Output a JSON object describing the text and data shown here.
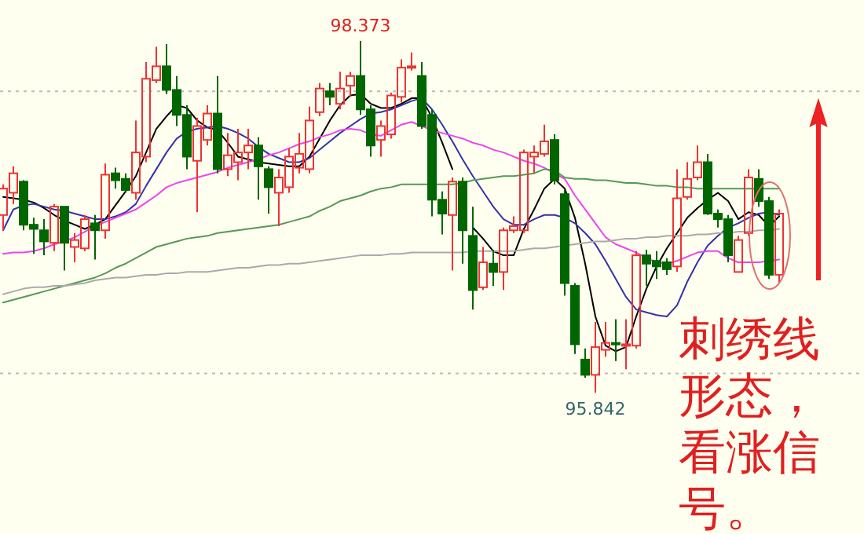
{
  "chart_data": {
    "type": "candlestick",
    "categories": [
      null,
      null,
      null,
      null,
      null,
      null,
      null,
      null,
      null,
      null,
      null,
      null,
      null,
      null,
      null,
      null,
      null,
      null,
      null,
      null,
      null,
      null,
      null,
      null,
      null,
      null,
      null,
      null,
      null,
      null,
      null,
      null,
      null,
      null,
      null,
      null,
      null,
      null,
      null,
      null,
      null,
      null,
      null,
      null,
      null,
      null,
      null,
      null,
      null,
      null,
      null,
      null,
      null,
      null,
      null,
      null,
      null,
      null,
      null,
      null,
      null,
      null,
      null,
      null,
      null,
      null,
      null,
      null,
      null,
      null,
      null,
      null,
      null,
      null,
      null,
      null,
      null
    ],
    "ohlc": [
      [
        97.12,
        97.34,
        97.01,
        97.31
      ],
      [
        97.28,
        97.47,
        97.2,
        97.42
      ],
      [
        97.36,
        97.37,
        97.01,
        97.05
      ],
      [
        97.05,
        97.1,
        96.84,
        97.02
      ],
      [
        97.01,
        97.09,
        96.83,
        96.93
      ],
      [
        96.92,
        97.2,
        96.86,
        97.18
      ],
      [
        97.18,
        97.18,
        96.72,
        96.92
      ],
      [
        96.89,
        96.99,
        96.78,
        96.94
      ],
      [
        96.88,
        97.12,
        96.86,
        97.09
      ],
      [
        97.06,
        97.12,
        96.8,
        97.01
      ],
      [
        97.01,
        97.49,
        96.95,
        97.41
      ],
      [
        97.42,
        97.46,
        97.31,
        97.37
      ],
      [
        97.38,
        97.42,
        97.28,
        97.3
      ],
      [
        97.28,
        97.8,
        97.23,
        97.57
      ],
      [
        97.54,
        98.22,
        97.5,
        98.1
      ],
      [
        98.09,
        98.33,
        98.07,
        98.19
      ],
      [
        98.19,
        98.35,
        97.99,
        98.02
      ],
      [
        98.02,
        98.12,
        97.76,
        97.84
      ],
      [
        97.84,
        97.91,
        97.45,
        97.54
      ],
      [
        97.51,
        97.82,
        97.14,
        97.76
      ],
      [
        97.66,
        97.91,
        97.62,
        97.85
      ],
      [
        97.85,
        98.12,
        97.42,
        97.45
      ],
      [
        97.45,
        97.71,
        97.4,
        97.55
      ],
      [
        97.5,
        97.74,
        97.37,
        97.57
      ],
      [
        97.57,
        97.74,
        97.45,
        97.62
      ],
      [
        97.62,
        97.68,
        97.23,
        97.47
      ],
      [
        97.45,
        97.47,
        97.13,
        97.32
      ],
      [
        97.28,
        97.45,
        97.04,
        97.39
      ],
      [
        97.32,
        97.6,
        97.28,
        97.54
      ],
      [
        97.46,
        97.71,
        97.42,
        97.56
      ],
      [
        97.45,
        97.9,
        97.42,
        97.8
      ],
      [
        97.86,
        98.07,
        97.83,
        98.03
      ],
      [
        98.01,
        98.07,
        97.91,
        97.97
      ],
      [
        97.92,
        98.15,
        97.88,
        98.03
      ],
      [
        98.05,
        98.15,
        97.97,
        98.12
      ],
      [
        98.12,
        98.373,
        97.84,
        97.88
      ],
      [
        97.88,
        97.91,
        97.54,
        97.62
      ],
      [
        97.66,
        97.8,
        97.54,
        97.76
      ],
      [
        97.7,
        98.0,
        97.67,
        97.98
      ],
      [
        97.97,
        98.24,
        97.93,
        98.18
      ],
      [
        98.18,
        98.29,
        98.16,
        98.19
      ],
      [
        98.12,
        98.22,
        97.74,
        97.76
      ],
      [
        97.84,
        97.88,
        97.11,
        97.23
      ],
      [
        97.23,
        97.29,
        96.98,
        97.13
      ],
      [
        97.12,
        97.39,
        96.72,
        97.36
      ],
      [
        97.36,
        97.39,
        96.77,
        97.01
      ],
      [
        96.97,
        97.18,
        96.44,
        96.58
      ],
      [
        96.6,
        96.89,
        96.58,
        96.78
      ],
      [
        96.77,
        96.87,
        96.61,
        96.71
      ],
      [
        96.71,
        97.03,
        96.58,
        97.01
      ],
      [
        97.01,
        97.11,
        96.99,
        97.04
      ],
      [
        97.01,
        97.59,
        96.99,
        97.57
      ],
      [
        97.54,
        97.62,
        97.42,
        97.57
      ],
      [
        97.56,
        97.77,
        97.54,
        97.65
      ],
      [
        97.66,
        97.7,
        97.34,
        97.37
      ],
      [
        97.27,
        97.3,
        96.54,
        96.63
      ],
      [
        96.61,
        96.63,
        96.12,
        96.19
      ],
      [
        96.08,
        96.16,
        95.95,
        95.97
      ],
      [
        95.97,
        96.35,
        95.842,
        96.17
      ],
      [
        96.15,
        96.35,
        96.1,
        96.2
      ],
      [
        96.2,
        96.37,
        96.07,
        96.19
      ],
      [
        96.18,
        96.37,
        96.01,
        96.19
      ],
      [
        96.18,
        96.86,
        96.16,
        96.83
      ],
      [
        96.83,
        96.87,
        96.61,
        96.77
      ],
      [
        96.79,
        96.86,
        96.66,
        96.75
      ],
      [
        96.78,
        96.81,
        96.69,
        96.73
      ],
      [
        96.75,
        97.45,
        96.71,
        97.24
      ],
      [
        97.25,
        97.5,
        97.23,
        97.38
      ],
      [
        97.39,
        97.62,
        97.37,
        97.5
      ],
      [
        97.5,
        97.56,
        97.12,
        97.13
      ],
      [
        97.13,
        97.16,
        97.03,
        97.09
      ],
      [
        97.09,
        97.12,
        96.78,
        96.83
      ],
      [
        96.71,
        96.97,
        96.71,
        96.94
      ],
      [
        96.99,
        97.45,
        96.97,
        97.39
      ],
      [
        97.38,
        97.45,
        97.18,
        97.22
      ],
      [
        97.22,
        97.25,
        96.66,
        96.69
      ],
      [
        96.69,
        97.16,
        96.63,
        97.13
      ]
    ],
    "series": [
      {
        "type": "line",
        "color": "#000000",
        "values": [
          97.25,
          97.24,
          97.23,
          97.21,
          97.17,
          97.12,
          97.08,
          97.05,
          97.02,
          97.05,
          97.09,
          97.19,
          97.29,
          97.4,
          97.57,
          97.74,
          97.83,
          97.91,
          97.89,
          97.8,
          97.75,
          97.73,
          97.64,
          97.54,
          97.52,
          97.5,
          97.49,
          97.48,
          97.47,
          97.47,
          97.54,
          97.67,
          97.8,
          97.91,
          97.98,
          97.99,
          97.92,
          97.89,
          97.89,
          97.92,
          97.96,
          97.96,
          97.82,
          97.64,
          97.45,
          null,
          97.03,
          96.95,
          96.86,
          96.83,
          96.83,
          97.02,
          97.16,
          97.31,
          97.38,
          97.31,
          97.1,
          96.77,
          96.39,
          96.18,
          96.14,
          96.17,
          96.39,
          96.59,
          96.75,
          96.88,
          96.99,
          97.1,
          97.17,
          97.23,
          97.28,
          97.22,
          97.09,
          97.14,
          97.12,
          97.04,
          97.11
        ]
      },
      {
        "type": "line",
        "color": "#3333aa",
        "values": [
          97.01,
          97.16,
          97.19,
          97.2,
          97.18,
          97.16,
          97.15,
          97.13,
          97.11,
          97.09,
          97.09,
          97.11,
          97.14,
          97.2,
          97.33,
          97.45,
          97.57,
          97.67,
          97.72,
          97.74,
          97.75,
          97.76,
          97.74,
          97.71,
          97.67,
          97.61,
          97.56,
          97.53,
          97.5,
          97.5,
          97.53,
          97.59,
          97.65,
          97.71,
          97.76,
          97.81,
          97.85,
          97.86,
          97.88,
          97.91,
          97.94,
          97.96,
          97.88,
          97.77,
          97.65,
          97.52,
          97.4,
          97.29,
          97.18,
          97.09,
          97.05,
          97.05,
          97.09,
          97.12,
          97.12,
          97.1,
          97.06,
          96.99,
          96.91,
          96.79,
          96.66,
          96.53,
          96.44,
          96.42,
          96.4,
          96.39,
          96.47,
          96.64,
          96.78,
          96.9,
          96.97,
          97.03,
          97.06,
          97.1,
          97.13,
          97.14,
          97.12
        ]
      },
      {
        "type": "line",
        "color": "#ee44ee",
        "values": [
          96.84,
          96.85,
          96.85,
          96.86,
          96.88,
          96.91,
          96.93,
          96.96,
          97.0,
          97.04,
          97.07,
          97.1,
          97.13,
          97.16,
          97.21,
          97.26,
          97.32,
          97.35,
          97.37,
          97.39,
          97.41,
          97.43,
          97.46,
          97.48,
          97.5,
          97.52,
          97.55,
          97.57,
          97.6,
          97.63,
          97.65,
          97.68,
          97.7,
          97.73,
          97.74,
          97.73,
          97.7,
          97.69,
          97.73,
          97.77,
          97.79,
          97.76,
          97.73,
          97.71,
          97.69,
          97.67,
          97.64,
          97.62,
          97.59,
          97.57,
          97.54,
          97.51,
          97.49,
          97.46,
          97.42,
          97.38,
          97.26,
          97.16,
          97.06,
          96.96,
          96.91,
          96.88,
          96.85,
          96.81,
          96.78,
          96.77,
          96.79,
          96.82,
          96.85,
          96.86,
          96.86,
          96.81,
          96.78,
          96.78,
          96.78,
          96.79,
          96.8
        ]
      },
      {
        "type": "line",
        "color": "#559955",
        "values": [
          96.49,
          96.51,
          96.53,
          96.55,
          96.57,
          96.59,
          96.61,
          96.63,
          96.65,
          96.67,
          96.7,
          96.74,
          96.77,
          96.81,
          96.85,
          96.89,
          96.91,
          96.93,
          96.95,
          96.96,
          96.97,
          96.99,
          97.0,
          97.01,
          97.02,
          97.03,
          97.04,
          97.05,
          97.07,
          97.09,
          97.11,
          97.15,
          97.18,
          97.22,
          97.24,
          97.26,
          97.29,
          97.31,
          97.32,
          97.34,
          97.34,
          97.34,
          97.34,
          97.34,
          97.34,
          97.35,
          97.37,
          97.38,
          97.39,
          97.4,
          97.4,
          97.41,
          97.42,
          97.45,
          97.44,
          97.39,
          97.38,
          97.38,
          97.37,
          97.37,
          97.36,
          97.35,
          97.35,
          97.34,
          97.33,
          97.33,
          97.32,
          97.32,
          97.31,
          97.31,
          97.31,
          97.31,
          97.31,
          97.31,
          97.31,
          97.31,
          97.31
        ]
      },
      {
        "type": "line",
        "color": "#aaaaaa",
        "values": [
          96.55,
          96.57,
          96.59,
          96.6,
          96.6,
          96.61,
          96.61,
          96.62,
          96.63,
          96.65,
          96.66,
          96.67,
          96.67,
          96.68,
          96.69,
          96.69,
          96.7,
          96.7,
          96.71,
          96.71,
          96.71,
          96.72,
          96.73,
          96.74,
          96.74,
          96.75,
          96.76,
          96.76,
          96.77,
          96.77,
          96.78,
          96.79,
          96.8,
          96.81,
          96.82,
          96.83,
          96.83,
          96.83,
          96.84,
          96.84,
          96.85,
          96.85,
          96.85,
          96.85,
          96.85,
          96.85,
          96.86,
          96.86,
          96.86,
          96.86,
          96.86,
          96.87,
          96.88,
          96.88,
          96.89,
          96.9,
          96.91,
          96.92,
          96.93,
          96.93,
          96.94,
          96.95,
          96.95,
          96.96,
          96.96,
          96.97,
          96.97,
          96.97,
          96.98,
          96.98,
          96.99,
          96.99,
          97.0,
          97.0,
          97.01,
          97.01,
          97.02
        ]
      }
    ],
    "ref_lines": [
      {
        "axis": "y",
        "value": 98.01,
        "color": "#bbbbbb",
        "line_style": "dotted"
      },
      {
        "axis": "y",
        "value": 95.98,
        "color": "#bbbbbb",
        "line_style": "dotted"
      }
    ],
    "annotations": [
      {
        "text": "98.373",
        "y": 98.373
      },
      {
        "text": "95.842",
        "y": 95.842
      },
      "刺绣线形态，看涨信号。"
    ],
    "line_style": "solid",
    "marker": "none"
  }
}
